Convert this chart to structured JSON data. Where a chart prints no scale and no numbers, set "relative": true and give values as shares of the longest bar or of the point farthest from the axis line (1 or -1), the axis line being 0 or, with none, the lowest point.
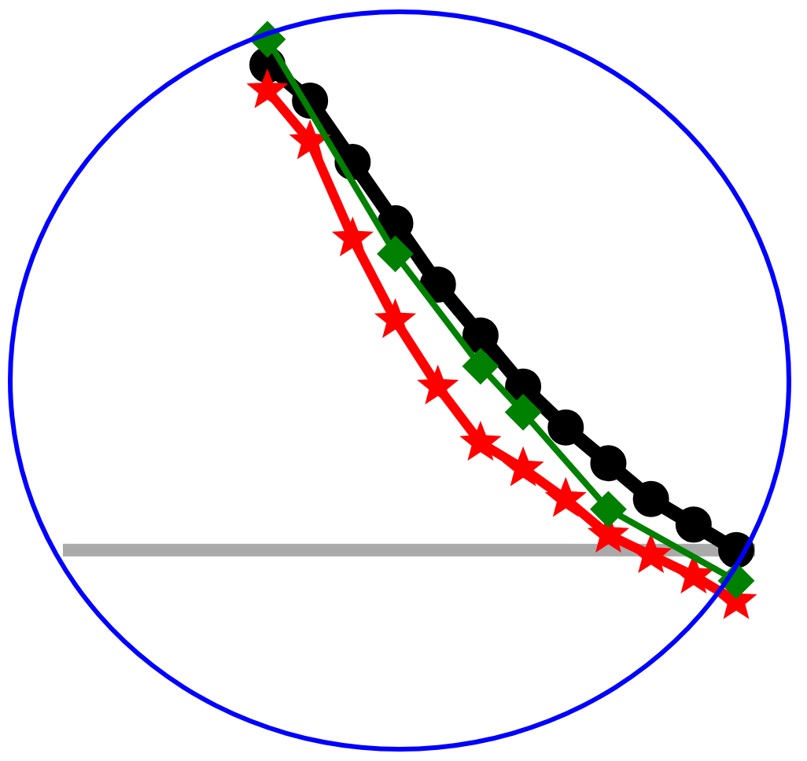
{
  "chart_data": {
    "type": "line",
    "relative": true,
    "legend": false,
    "categories": [
      null,
      null,
      null,
      null,
      null,
      null,
      null,
      null,
      null,
      null,
      null,
      null
    ],
    "series": [
      {
        "color": "#000000",
        "marker": "circle",
        "values": [
          0.95,
          0.88,
          0.76,
          0.64,
          0.52,
          0.42,
          0.32,
          0.24,
          0.17,
          0.1,
          0.05,
          0.0
        ]
      },
      {
        "color": "#ff0000",
        "marker": "star",
        "values": [
          0.9,
          0.8,
          0.61,
          0.45,
          0.32,
          0.21,
          0.16,
          0.1,
          0.03,
          -0.01,
          -0.05,
          -0.1
        ]
      },
      {
        "color": "#008000",
        "marker": "diamond",
        "values": [
          1.0,
          null,
          null,
          0.58,
          null,
          0.36,
          0.27,
          null,
          0.08,
          null,
          null,
          -0.06
        ]
      }
    ]
  }
}
